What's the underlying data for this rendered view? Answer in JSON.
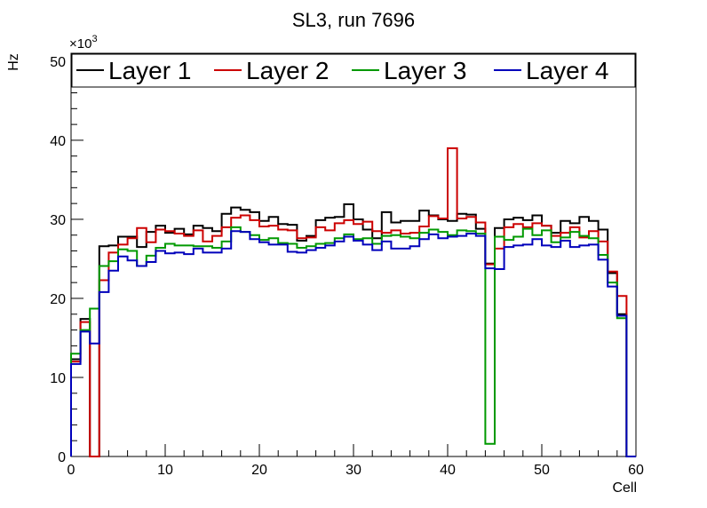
{
  "chart_data": {
    "type": "line",
    "title": "SL3, run 7696",
    "xlabel": "Cell",
    "ylabel": "Hz",
    "y_multiplier_label": "×10",
    "y_multiplier_exponent": "3",
    "xlim": [
      0,
      60
    ],
    "ylim": [
      0,
      51
    ],
    "x_ticks": [
      0,
      10,
      20,
      30,
      40,
      50,
      60
    ],
    "y_ticks": [
      0,
      10,
      20,
      30,
      40,
      50
    ],
    "x_tick_labels": [
      "0",
      "10",
      "20",
      "30",
      "40",
      "50",
      "60"
    ],
    "y_tick_labels": [
      "0",
      "10",
      "20",
      "30",
      "40",
      "50"
    ],
    "grid": false,
    "legend_position": "top",
    "bin_width": 1,
    "bin_start": 0,
    "series": [
      {
        "name": "Layer 1",
        "color": "#000000",
        "values": [
          12.3,
          17.4,
          0,
          26.6,
          26.7,
          27.8,
          27.8,
          26.5,
          28.4,
          29.2,
          28.3,
          28.8,
          28.1,
          29.2,
          28.9,
          28.5,
          30.7,
          31.5,
          31.2,
          30.9,
          29.8,
          30.3,
          29.4,
          29.3,
          27.3,
          27.9,
          29.9,
          30.2,
          30.3,
          31.9,
          30.0,
          28.7,
          27.6,
          30.9,
          29.6,
          29.8,
          29.8,
          31.1,
          30.5,
          30.0,
          29.8,
          30.7,
          30.6,
          28.8,
          24.4,
          28.9,
          30.0,
          30.2,
          29.9,
          30.5,
          29.2,
          28.3,
          29.8,
          29.5,
          30.3,
          29.8,
          28.7,
          23.2,
          18.0,
          0
        ]
      },
      {
        "name": "Layer 2",
        "color": "#cc0000",
        "values": [
          12.0,
          17.0,
          0,
          22.3,
          25.8,
          26.8,
          27.6,
          28.9,
          27.1,
          28.7,
          28.5,
          28.2,
          27.9,
          28.6,
          27.2,
          27.9,
          29.0,
          30.2,
          30.5,
          29.9,
          29.1,
          29.2,
          28.7,
          28.6,
          27.6,
          27.7,
          29.0,
          28.6,
          29.5,
          29.9,
          29.4,
          29.7,
          28.5,
          28.3,
          28.6,
          28.2,
          28.3,
          29.1,
          30.4,
          30.1,
          39.0,
          30.1,
          30.3,
          29.6,
          24.3,
          26.3,
          29.0,
          29.4,
          29.0,
          29.5,
          29.2,
          27.9,
          28.3,
          29.0,
          27.7,
          28.5,
          27.2,
          23.4,
          20.3,
          0
        ]
      },
      {
        "name": "Layer 3",
        "color": "#009900",
        "values": [
          13.0,
          16.0,
          18.7,
          24.1,
          24.7,
          26.2,
          26.0,
          24.1,
          25.4,
          26.4,
          26.9,
          26.7,
          26.7,
          26.6,
          26.6,
          26.4,
          27.2,
          29.0,
          28.4,
          28.0,
          27.4,
          27.6,
          27.0,
          26.9,
          26.4,
          26.6,
          26.9,
          27.0,
          27.6,
          28.1,
          27.5,
          27.6,
          26.9,
          27.9,
          28.0,
          27.8,
          27.6,
          28.3,
          28.7,
          28.4,
          28.0,
          28.6,
          28.5,
          28.2,
          1.6,
          27.8,
          27.4,
          27.8,
          28.8,
          28.0,
          28.6,
          27.1,
          27.7,
          28.4,
          27.9,
          27.6,
          25.5,
          22.0,
          17.5,
          0
        ]
      },
      {
        "name": "Layer 4",
        "color": "#0000bb",
        "values": [
          11.7,
          15.8,
          14.3,
          20.8,
          23.5,
          25.3,
          24.8,
          24.1,
          24.6,
          26.0,
          25.7,
          25.8,
          25.6,
          26.3,
          25.8,
          25.8,
          26.3,
          28.5,
          28.4,
          27.5,
          27.1,
          26.8,
          26.8,
          25.9,
          25.8,
          26.1,
          26.4,
          26.7,
          27.2,
          27.8,
          27.3,
          26.8,
          26.1,
          27.2,
          26.3,
          26.3,
          26.6,
          27.5,
          28.1,
          27.6,
          27.8,
          27.9,
          28.2,
          27.9,
          23.8,
          23.7,
          26.5,
          26.7,
          26.8,
          27.5,
          26.7,
          26.5,
          27.3,
          26.5,
          26.7,
          26.8,
          24.9,
          21.5,
          17.8,
          0
        ]
      }
    ]
  }
}
